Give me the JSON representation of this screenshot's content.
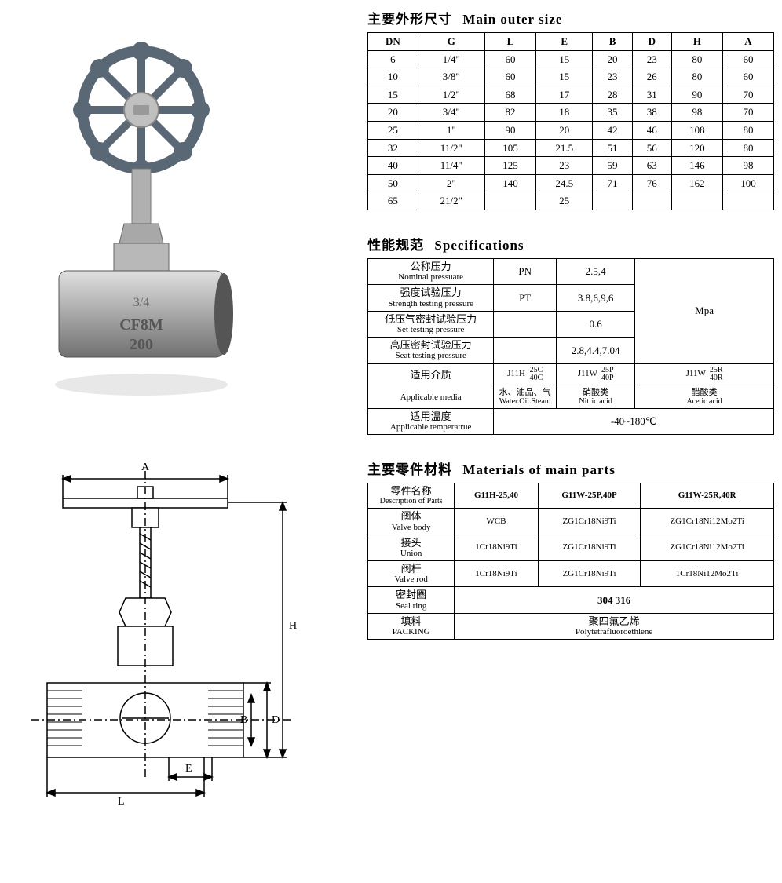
{
  "titles": {
    "outer_size_cn": "主要外形尺寸",
    "outer_size_en": "Main outer size",
    "specs_cn": "性能规范",
    "specs_en": "Specifications",
    "materials_cn": "主要零件材料",
    "materials_en": "Materials of main parts"
  },
  "outer_size": {
    "headers": [
      "DN",
      "G",
      "L",
      "E",
      "B",
      "D",
      "H",
      "A"
    ],
    "rows": [
      [
        "6",
        "1/4\"",
        "60",
        "15",
        "20",
        "23",
        "80",
        "60"
      ],
      [
        "10",
        "3/8\"",
        "60",
        "15",
        "23",
        "26",
        "80",
        "60"
      ],
      [
        "15",
        "1/2\"",
        "68",
        "17",
        "28",
        "31",
        "90",
        "70"
      ],
      [
        "20",
        "3/4\"",
        "82",
        "18",
        "35",
        "38",
        "98",
        "70"
      ],
      [
        "25",
        "1\"",
        "90",
        "20",
        "42",
        "46",
        "108",
        "80"
      ],
      [
        "32",
        "11/2\"",
        "105",
        "21.5",
        "51",
        "56",
        "120",
        "80"
      ],
      [
        "40",
        "11/4\"",
        "125",
        "23",
        "59",
        "63",
        "146",
        "98"
      ],
      [
        "50",
        "2\"",
        "140",
        "24.5",
        "71",
        "76",
        "162",
        "100"
      ],
      [
        "65",
        "21/2\"",
        "",
        "25",
        "",
        "",
        "",
        ""
      ]
    ]
  },
  "specs": {
    "rows": [
      {
        "cn": "公称压力",
        "en": "Nominal pressuare",
        "sym": "PN",
        "val": "2.5,4"
      },
      {
        "cn": "强度试验压力",
        "en": "Strength testing pressure",
        "sym": "PT",
        "val": "3.8,6,9,6"
      },
      {
        "cn": "低压气密封试验压力",
        "en": "Set testing pressure",
        "sym": "",
        "val": "0.6"
      },
      {
        "cn": "高压密封试验压力",
        "en": "Seat testing pressure",
        "sym": "",
        "val": "2.8,4.4,7.04"
      }
    ],
    "unit": "Mpa",
    "media_label_cn": "适用介质",
    "media_label_en": "Applicable media",
    "media": [
      {
        "code_prefix": "J11H-",
        "top": "25C",
        "bot": "40C",
        "cn": "水、油品、气",
        "en": "Water.Oil.Steam"
      },
      {
        "code_prefix": "J11W-",
        "top": "25P",
        "bot": "40P",
        "cn": "硝酸类",
        "en": "Nitric acid"
      },
      {
        "code_prefix": "J11W-",
        "top": "25R",
        "bot": "40R",
        "cn": "醋酸类",
        "en": "Acetic acid"
      }
    ],
    "temp_label_cn": "适用温度",
    "temp_label_en": "Applicable temperatrue",
    "temp_val": "-40~180℃"
  },
  "materials": {
    "header_cn": "零件名称",
    "header_en": "Description of Parts",
    "col_headers": [
      "G11H-25,40",
      "G11W-25P,40P",
      "G11W-25R,40R"
    ],
    "rows": [
      {
        "cn": "阀体",
        "en": "Valve body",
        "vals": [
          "WCB",
          "ZG1Cr18Ni9Ti",
          "ZG1Cr18Ni12Mo2Ti"
        ]
      },
      {
        "cn": "接头",
        "en": "Union",
        "vals": [
          "1Cr18Ni9Ti",
          "ZG1Cr18Ni9Ti",
          "ZG1Cr18Ni12Mo2Ti"
        ]
      },
      {
        "cn": "阀杆",
        "en": "Valve rod",
        "vals": [
          "1Cr18Ni9Ti",
          "ZG1Cr18Ni9Ti",
          "1Cr18Ni12Mo2Ti"
        ]
      }
    ],
    "seal_cn": "密封圈",
    "seal_en": "Seal ring",
    "seal_val": "304 316",
    "packing_cn": "填料",
    "packing_en": "PACKING",
    "packing_val_cn": "聚四氟乙烯",
    "packing_val_en": "Polytetrafluoroethlene"
  },
  "diagram_labels": {
    "A": "A",
    "H": "H",
    "B": "B",
    "D": "D",
    "L": "L",
    "E": "E"
  },
  "colors": {
    "border": "#000000",
    "text": "#000000",
    "bg": "#ffffff",
    "valve_wheel": "#6b7a8a",
    "valve_body": "#b8b8b8"
  }
}
